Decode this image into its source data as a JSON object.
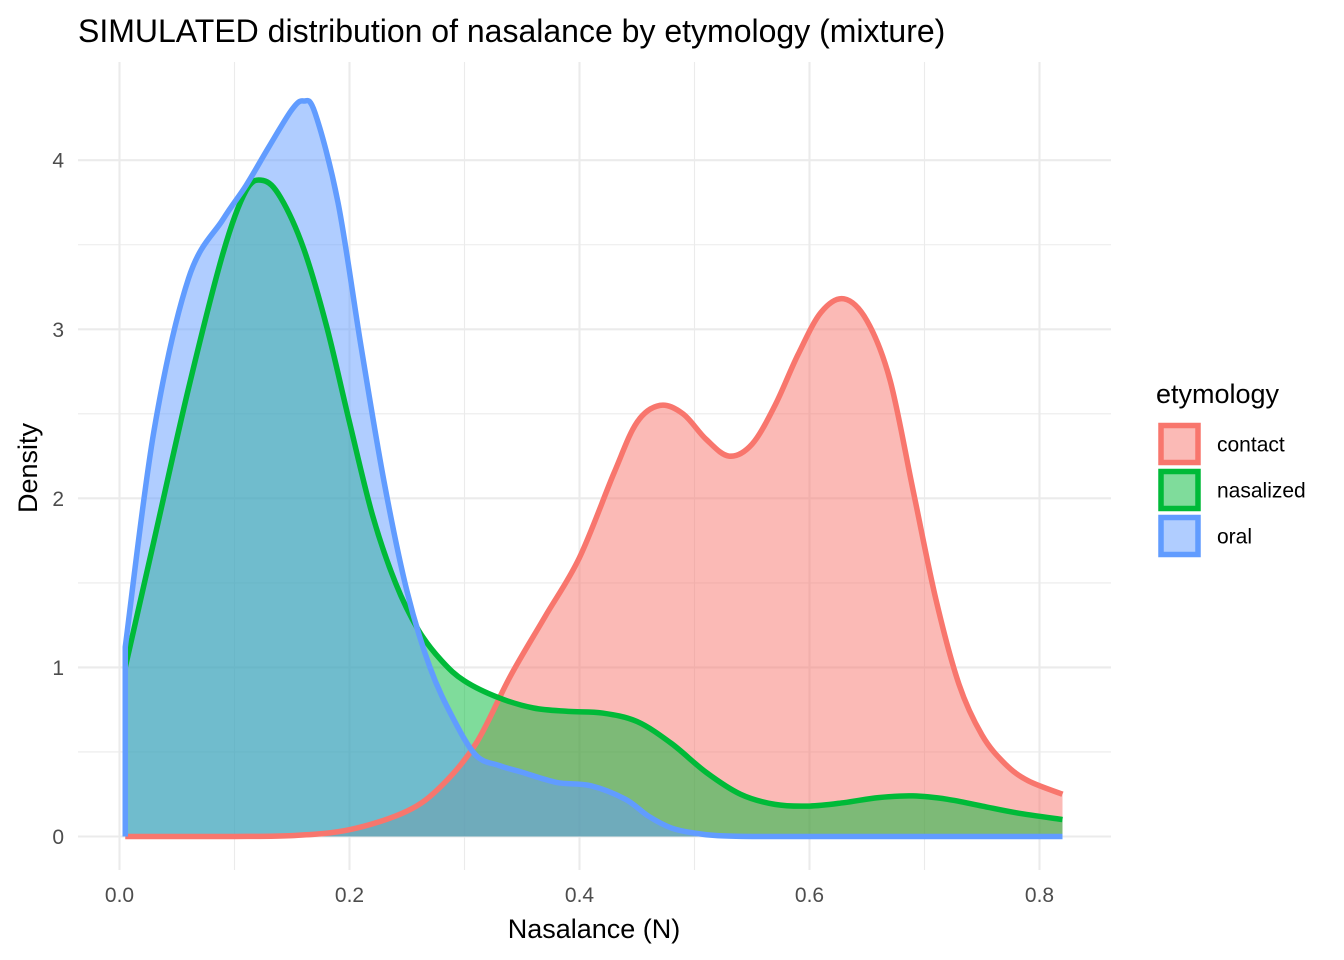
{
  "chart_data": {
    "type": "area",
    "title": "SIMULATED distribution of nasalance by etymology (mixture)",
    "xlabel": "Nasalance (N)",
    "ylabel": "Density",
    "xlim": [
      0.0,
      0.82
    ],
    "ylim": [
      0,
      4.35
    ],
    "x_ticks": [
      0.0,
      0.2,
      0.4,
      0.6,
      0.8
    ],
    "x_tick_labels": [
      "0.0",
      "0.2",
      "0.4",
      "0.6",
      "0.8"
    ],
    "y_ticks": [
      0,
      1,
      2,
      3,
      4
    ],
    "y_tick_labels": [
      "0",
      "1",
      "2",
      "3",
      "4"
    ],
    "grid": true,
    "legend": {
      "title": "etymology",
      "position": "right"
    },
    "series": [
      {
        "name": "contact",
        "color": "#F8766D",
        "x": [
          0.005,
          0.05,
          0.1,
          0.15,
          0.2,
          0.25,
          0.28,
          0.31,
          0.34,
          0.37,
          0.4,
          0.43,
          0.45,
          0.47,
          0.49,
          0.51,
          0.53,
          0.55,
          0.57,
          0.59,
          0.61,
          0.63,
          0.65,
          0.67,
          0.69,
          0.71,
          0.73,
          0.75,
          0.77,
          0.79,
          0.82
        ],
        "y": [
          0.0,
          0.0,
          0.0,
          0.005,
          0.04,
          0.15,
          0.3,
          0.55,
          0.95,
          1.3,
          1.65,
          2.15,
          2.45,
          2.55,
          2.5,
          2.35,
          2.25,
          2.32,
          2.55,
          2.85,
          3.1,
          3.18,
          3.05,
          2.7,
          2.05,
          1.4,
          0.9,
          0.6,
          0.43,
          0.33,
          0.25
        ]
      },
      {
        "name": "nasalized",
        "color": "#00BA38",
        "x": [
          0.005,
          0.03,
          0.06,
          0.09,
          0.11,
          0.125,
          0.14,
          0.16,
          0.18,
          0.2,
          0.22,
          0.24,
          0.26,
          0.28,
          0.3,
          0.33,
          0.36,
          0.39,
          0.42,
          0.45,
          0.48,
          0.51,
          0.54,
          0.57,
          0.6,
          0.63,
          0.66,
          0.69,
          0.72,
          0.75,
          0.78,
          0.82
        ],
        "y": [
          1.0,
          1.75,
          2.65,
          3.45,
          3.82,
          3.88,
          3.78,
          3.48,
          3.02,
          2.45,
          1.9,
          1.5,
          1.22,
          1.04,
          0.92,
          0.82,
          0.76,
          0.74,
          0.73,
          0.68,
          0.55,
          0.38,
          0.25,
          0.19,
          0.18,
          0.2,
          0.23,
          0.24,
          0.22,
          0.18,
          0.14,
          0.1
        ]
      },
      {
        "name": "oral",
        "color": "#619CFF",
        "x": [
          0.005,
          0.03,
          0.06,
          0.09,
          0.11,
          0.13,
          0.15,
          0.16,
          0.17,
          0.19,
          0.21,
          0.23,
          0.25,
          0.27,
          0.29,
          0.31,
          0.33,
          0.35,
          0.38,
          0.41,
          0.44,
          0.46,
          0.48,
          0.5,
          0.52,
          0.55,
          0.6,
          0.7,
          0.82
        ],
        "y": [
          1.12,
          2.4,
          3.3,
          3.65,
          3.85,
          4.08,
          4.3,
          4.35,
          4.28,
          3.75,
          2.9,
          2.1,
          1.45,
          1.0,
          0.7,
          0.48,
          0.42,
          0.38,
          0.32,
          0.3,
          0.22,
          0.12,
          0.05,
          0.02,
          0.005,
          0.0,
          0.0,
          0.0,
          0.0
        ]
      }
    ]
  }
}
